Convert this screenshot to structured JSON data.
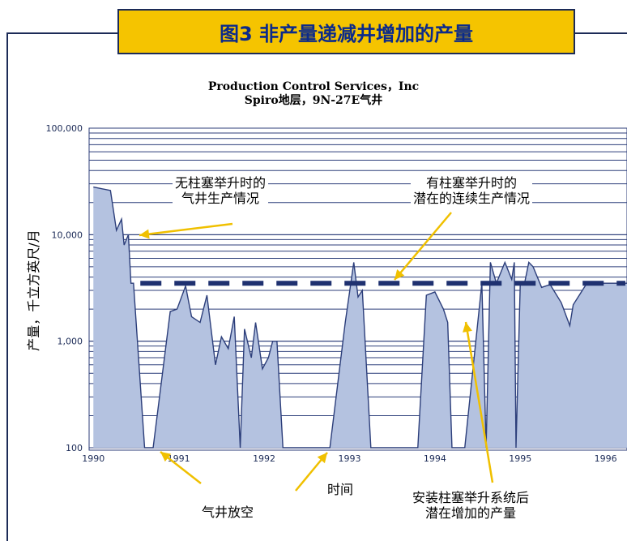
{
  "title": "图3 非产量递减井增加的产量",
  "subtitle_line1": "Production Control Services，Inc",
  "subtitle_line2": "Spiro地层，9N-27E气井",
  "annotations": {
    "without_plunger": [
      "无柱塞举升时的",
      "气井生产情况"
    ],
    "with_plunger": [
      "有柱塞举升时的",
      "潜在的连续生产情况"
    ],
    "shut_in": "气井放空",
    "added_production": [
      "安装柱塞举升系统后",
      "潜在增加的产量"
    ]
  },
  "colors": {
    "title_bg": "#f5c400",
    "title_text": "#0b2a8a",
    "frame": "#1c2b57",
    "line": "#2c3e7a",
    "fill": "#b4c2e0",
    "dash": "#1f3170",
    "arrow": "#f0c000"
  },
  "chart_data": {
    "type": "area",
    "ylabel": "产量，千立方英尺/月",
    "xlabel": "时间",
    "y_scale": "log",
    "ylim": [
      100,
      100000
    ],
    "xlim": [
      1989.95,
      1996.25
    ],
    "y_ticks": [
      "100",
      "1,000",
      "10,000",
      "100,000"
    ],
    "x_ticks": [
      "1990",
      "1991",
      "1992",
      "1993",
      "1994",
      "1995",
      "1996"
    ],
    "grid": true,
    "potential_level": 3500,
    "series": [
      {
        "x": [
          1990.0,
          1990.2,
          1990.27,
          1990.33,
          1990.36,
          1990.41,
          1990.44,
          1990.47,
          1990.6,
          1990.7,
          1990.9,
          1990.98,
          1991.08,
          1991.15,
          1991.25,
          1991.33,
          1991.43,
          1991.5,
          1991.58,
          1991.65,
          1991.72,
          1991.77,
          1991.85,
          1991.9,
          1991.98,
          1992.05,
          1992.1,
          1992.15,
          1992.22,
          1992.4,
          1992.77,
          1992.95,
          1993.05,
          1993.1,
          1993.15,
          1993.25,
          1993.4,
          1993.8,
          1993.9,
          1994.0,
          1994.1,
          1994.15,
          1994.2,
          1994.35,
          1994.55,
          1994.6,
          1994.65,
          1994.72,
          1994.82,
          1994.9,
          1994.93,
          1994.95,
          1995.0,
          1995.05,
          1995.1,
          1995.15,
          1995.25,
          1995.35,
          1995.48,
          1995.58,
          1995.62,
          1995.78,
          1995.9,
          1995.97,
          1996.05,
          1996.12,
          1996.2,
          1996.25
        ],
        "y": [
          28000,
          26000,
          11000,
          14000,
          8000,
          10000,
          3500,
          3500,
          100,
          100,
          1900,
          2000,
          3300,
          1700,
          1500,
          2700,
          600,
          1100,
          850,
          1700,
          100,
          1300,
          700,
          1500,
          550,
          700,
          1000,
          1000,
          100,
          100,
          100,
          1500,
          5500,
          2600,
          3000,
          100,
          100,
          100,
          2700,
          2900,
          2000,
          1500,
          100,
          100,
          3500,
          100,
          5500,
          3500,
          5500,
          3800,
          5500,
          100,
          3500,
          3500,
          5500,
          5000,
          3200,
          3400,
          2300,
          1400,
          2200,
          3500,
          3500,
          3500,
          3500,
          3500,
          3500,
          3500
        ]
      }
    ]
  }
}
